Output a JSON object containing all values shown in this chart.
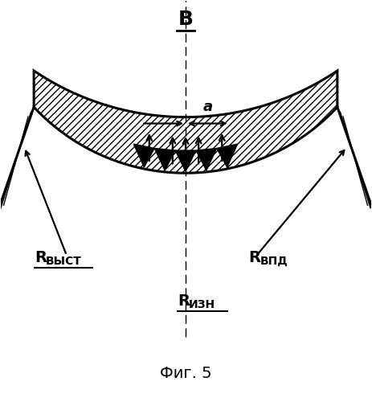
{
  "title": "Фиг. 5",
  "label_B": "B",
  "label_a": "a",
  "label_Rvyst": "Rвыст",
  "label_Rvpd": "Rвпд",
  "label_Rizn": "Rизн",
  "bg_color": "#ffffff",
  "line_color": "#000000"
}
